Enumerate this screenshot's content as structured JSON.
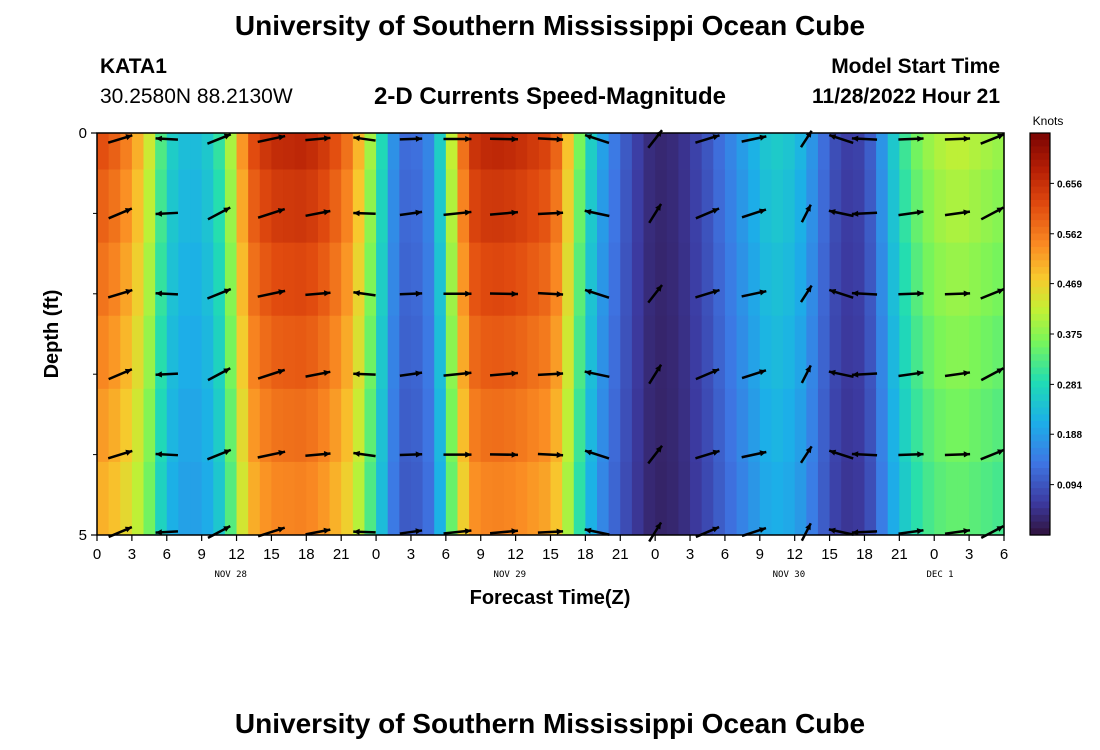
{
  "header": {
    "title": "University of Southern Mississippi Ocean Cube",
    "station": "KATA1",
    "coordinates": "30.2580N  88.2130W",
    "subtitle": "2-D Currents Speed-Magnitude",
    "model_start_label": "Model Start Time",
    "model_start_time": "11/28/2022 Hour 21"
  },
  "footer": {
    "title": "University of Southern Mississippi Ocean Cube"
  },
  "chart_data": {
    "type": "heatmap",
    "title": "2-D Currents Speed-Magnitude",
    "xlabel": "Forecast Time(Z)",
    "ylabel": "Depth (ft)",
    "x_range_hours": [
      0,
      78
    ],
    "x_start": "Nov 28 00Z",
    "ylim": [
      0,
      5
    ],
    "y_ticks": [
      "0",
      "5"
    ],
    "x_tick_labels": [
      "0",
      "3",
      "6",
      "9",
      "12",
      "15",
      "18",
      "21",
      "0",
      "3",
      "6",
      "9",
      "12",
      "15",
      "18",
      "21",
      "0",
      "3",
      "6",
      "9",
      "12",
      "15",
      "18",
      "21",
      "0",
      "3",
      "6"
    ],
    "date_labels": [
      {
        "text": "NOV 28",
        "hour": 11.5
      },
      {
        "text": "NOV 29",
        "hour": 35.5
      },
      {
        "text": "NOV 30",
        "hour": 59.5
      },
      {
        "text": "DEC 1",
        "hour": 72.5
      }
    ],
    "colorbar": {
      "unit": "Knots",
      "ticks": [
        0.094,
        0.188,
        0.281,
        0.375,
        0.469,
        0.562,
        0.656
      ],
      "range": [
        0.0,
        0.75
      ]
    },
    "depth_rows": 6,
    "speed_profile_hours": [
      0,
      2,
      4,
      5,
      6,
      8,
      10,
      11,
      12,
      13,
      15,
      18,
      20,
      22,
      24,
      25,
      26,
      28,
      29,
      31,
      32,
      33,
      34,
      36,
      39,
      40,
      41,
      42,
      43,
      44,
      45,
      46,
      47,
      48,
      50,
      52,
      54,
      56,
      58,
      60,
      61,
      62,
      63,
      64,
      65,
      66,
      67,
      68,
      70,
      72,
      74,
      76,
      78
    ],
    "speed_profile_knots": [
      0.62,
      0.58,
      0.48,
      0.38,
      0.27,
      0.22,
      0.26,
      0.34,
      0.46,
      0.6,
      0.66,
      0.67,
      0.63,
      0.55,
      0.34,
      0.22,
      0.12,
      0.13,
      0.18,
      0.5,
      0.64,
      0.66,
      0.67,
      0.66,
      0.62,
      0.55,
      0.42,
      0.3,
      0.22,
      0.16,
      0.12,
      0.08,
      0.05,
      0.03,
      0.04,
      0.08,
      0.14,
      0.2,
      0.26,
      0.24,
      0.2,
      0.15,
      0.1,
      0.07,
      0.06,
      0.08,
      0.13,
      0.22,
      0.34,
      0.4,
      0.42,
      0.4,
      0.38
    ],
    "vector_hours": [
      2,
      6,
      10.5,
      15,
      19,
      23,
      27,
      31,
      35,
      39,
      43,
      48,
      52.5,
      56.5,
      61,
      64,
      66,
      70,
      74,
      77
    ],
    "vector_angles_deg": [
      20,
      180,
      25,
      15,
      8,
      175,
      5,
      3,
      2,
      0,
      165,
      55,
      20,
      15,
      60,
      165,
      180,
      5,
      5,
      25
    ],
    "vector_lengths": [
      0.9,
      0.8,
      0.9,
      1.0,
      0.9,
      0.8,
      0.8,
      1.0,
      1.0,
      0.9,
      0.9,
      0.8,
      0.9,
      0.9,
      0.7,
      0.9,
      0.9,
      0.9,
      0.9,
      0.9
    ]
  }
}
